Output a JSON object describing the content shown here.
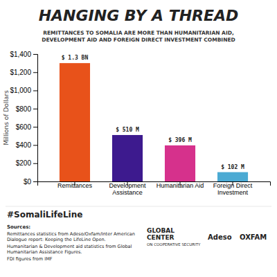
{
  "chart_data": {
    "type": "bar",
    "title": "HANGING BY A THREAD",
    "subtitle": "REMITTANCES TO SOMALIA ARE MORE THAN HUMANITARIAN AID,\nDEVELOPMENT AID AND FOREIGN DIRECT INVESTMENT COMBINED",
    "categories": [
      "Remittances",
      "Development\nAssistance",
      "Humanitarian Aid",
      "Foreign Direct\nInvestment"
    ],
    "values": [
      1300,
      510,
      396,
      102
    ],
    "value_labels": [
      "$ 1.3 BN",
      "$ 510 M",
      "$ 396 M",
      "$ 102 M"
    ],
    "data_labels": true,
    "colors": [
      "#E8521A",
      "#3D1A8E",
      "#D6318C",
      "#4BAAD3"
    ],
    "ylabel": "Millions of Dollars",
    "ylim": [
      0,
      1400
    ],
    "yticks": [
      {
        "value": 0,
        "label": "$0"
      },
      {
        "value": 200,
        "label": "$200"
      },
      {
        "value": 400,
        "label": "$400"
      },
      {
        "value": 600,
        "label": "$600"
      },
      {
        "value": 800,
        "label": "$800"
      },
      {
        "value": 1000,
        "label": "$1,000"
      },
      {
        "value": 1200,
        "label": "$1,200"
      },
      {
        "value": 1400,
        "label": "$1,400"
      }
    ],
    "grid": false,
    "annotations": [
      "#SomaliLifeLine",
      "Sources:",
      "Remittances statistics from Adeso/Oxfam/Inter American\nDialogue report: Keeping the LifeLine Open.",
      "Humanitarian & Development aid statistics from Global\nHumanitarian Assistance Figures.",
      "FDI figures from IMF",
      "GLOBAL",
      "CENTER",
      "ON COOPERATIVE SECURITY",
      "Adeso",
      "OXFAM"
    ]
  }
}
